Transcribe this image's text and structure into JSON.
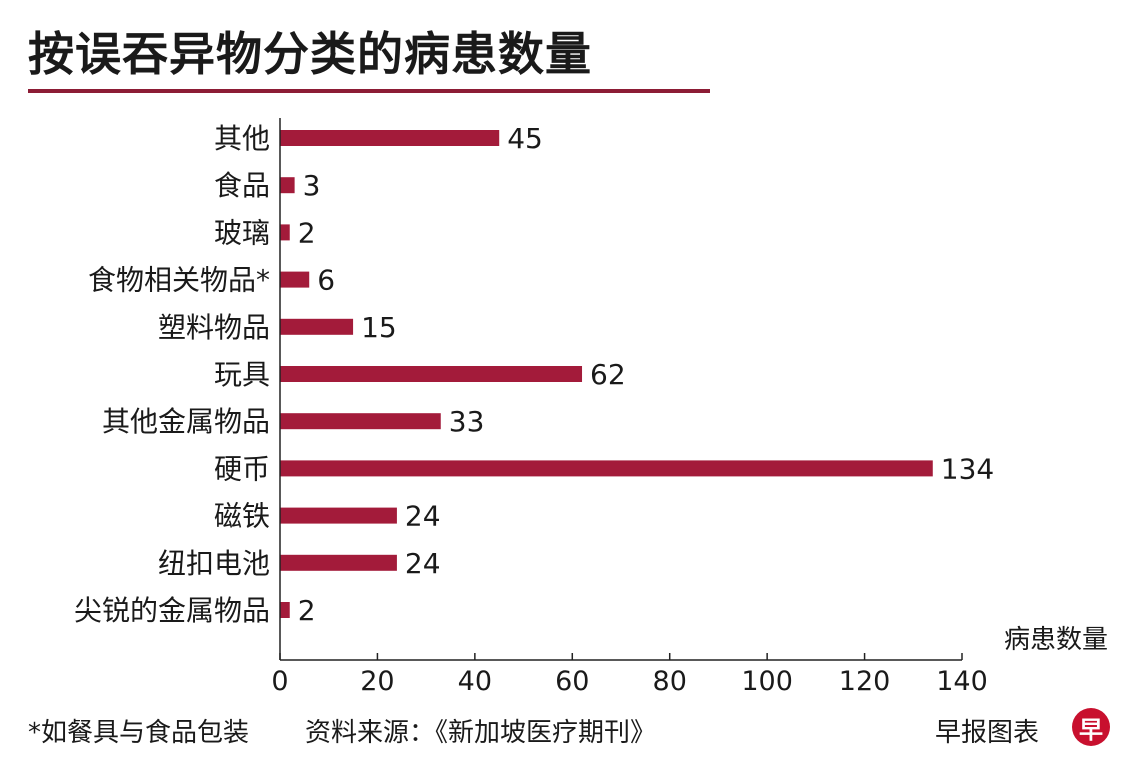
{
  "header": {
    "title": "按误吞异物分类的病患数量"
  },
  "colors": {
    "bar": "#a31b3a",
    "rule": "#8c1c35",
    "axis": "#222222",
    "logo": "#c8102e"
  },
  "chart_data": {
    "type": "bar",
    "orientation": "horizontal",
    "categories": [
      "其他",
      "食品",
      "玻璃",
      "食物相关物品*",
      "塑料物品",
      "玩具",
      "其他金属物品",
      "硬币",
      "磁铁",
      "纽扣电池",
      "尖锐的金属物品"
    ],
    "values": [
      45,
      3,
      2,
      6,
      15,
      62,
      33,
      134,
      24,
      24,
      2
    ],
    "xlabel": "病患数量",
    "xlim": [
      0,
      140
    ],
    "xticks": [
      0,
      20,
      40,
      60,
      80,
      100,
      120,
      140
    ],
    "grid": false,
    "data_labels": true
  },
  "footer": {
    "note": "*如餐具与食品包装",
    "source": "资料来源：《新加坡医疗期刊》",
    "credit": "早报图表",
    "logo_text": "早"
  }
}
